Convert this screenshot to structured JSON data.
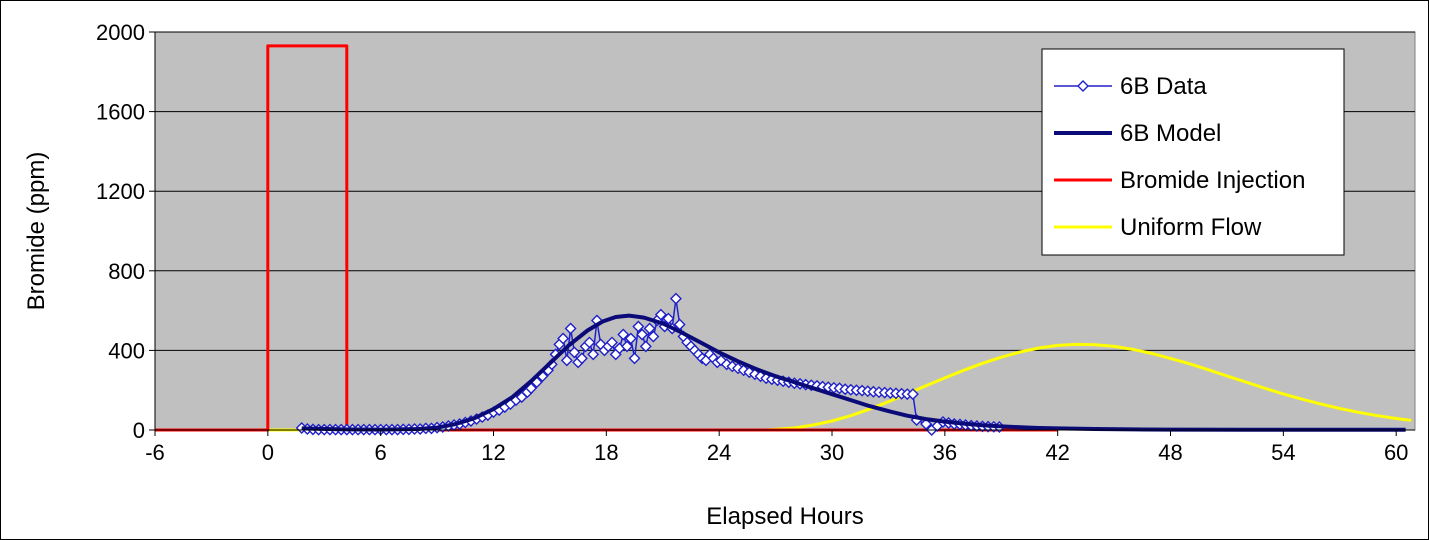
{
  "chart_data": {
    "type": "line",
    "title": "",
    "xlabel": "Elapsed Hours",
    "ylabel": "Bromide (ppm)",
    "xlim": [
      -6,
      61
    ],
    "ylim": [
      0,
      2000
    ],
    "xticks": [
      -6,
      0,
      6,
      12,
      18,
      24,
      30,
      36,
      42,
      48,
      54,
      60
    ],
    "yticks": [
      0,
      400,
      800,
      1200,
      1600,
      2000
    ],
    "grid": "horizontal",
    "legend_position": "top-right",
    "colors": {
      "plot_background": "#c0c0c0",
      "data": "#2020c8",
      "model": "#0a0a78",
      "injection": "#ff0000",
      "uniform": "#ffff00"
    },
    "series": [
      {
        "name": "6B Data",
        "marker": "diamond",
        "points": [
          [
            1.8,
            10
          ],
          [
            2.1,
            5
          ],
          [
            2.4,
            3
          ],
          [
            2.7,
            2
          ],
          [
            3.0,
            2
          ],
          [
            3.3,
            2
          ],
          [
            3.6,
            2
          ],
          [
            3.9,
            2
          ],
          [
            4.2,
            2
          ],
          [
            4.5,
            2
          ],
          [
            4.8,
            2
          ],
          [
            5.1,
            2
          ],
          [
            5.4,
            2
          ],
          [
            5.7,
            2
          ],
          [
            6.0,
            2
          ],
          [
            6.3,
            2
          ],
          [
            6.6,
            2
          ],
          [
            6.9,
            2
          ],
          [
            7.2,
            3
          ],
          [
            7.5,
            3
          ],
          [
            7.8,
            5
          ],
          [
            8.1,
            5
          ],
          [
            8.4,
            8
          ],
          [
            8.7,
            8
          ],
          [
            9.0,
            12
          ],
          [
            9.3,
            15
          ],
          [
            9.6,
            20
          ],
          [
            9.9,
            25
          ],
          [
            10.2,
            30
          ],
          [
            10.5,
            38
          ],
          [
            10.8,
            45
          ],
          [
            11.1,
            55
          ],
          [
            11.4,
            65
          ],
          [
            11.7,
            75
          ],
          [
            12.0,
            90
          ],
          [
            12.3,
            100
          ],
          [
            12.6,
            115
          ],
          [
            12.9,
            130
          ],
          [
            13.2,
            150
          ],
          [
            13.5,
            165
          ],
          [
            13.8,
            190
          ],
          [
            14.0,
            210
          ],
          [
            14.3,
            240
          ],
          [
            14.6,
            270
          ],
          [
            14.9,
            300
          ],
          [
            15.1,
            330
          ],
          [
            15.3,
            380
          ],
          [
            15.5,
            430
          ],
          [
            15.7,
            460
          ],
          [
            15.9,
            350
          ],
          [
            16.1,
            510
          ],
          [
            16.3,
            390
          ],
          [
            16.5,
            340
          ],
          [
            16.7,
            360
          ],
          [
            16.9,
            420
          ],
          [
            17.1,
            440
          ],
          [
            17.3,
            380
          ],
          [
            17.5,
            550
          ],
          [
            17.7,
            430
          ],
          [
            17.9,
            400
          ],
          [
            18.1,
            420
          ],
          [
            18.3,
            440
          ],
          [
            18.5,
            380
          ],
          [
            18.7,
            410
          ],
          [
            18.9,
            480
          ],
          [
            19.1,
            420
          ],
          [
            19.3,
            460
          ],
          [
            19.5,
            360
          ],
          [
            19.7,
            520
          ],
          [
            19.9,
            480
          ],
          [
            20.1,
            420
          ],
          [
            20.3,
            510
          ],
          [
            20.5,
            470
          ],
          [
            20.7,
            550
          ],
          [
            20.9,
            580
          ],
          [
            21.1,
            520
          ],
          [
            21.3,
            560
          ],
          [
            21.5,
            510
          ],
          [
            21.7,
            660
          ],
          [
            21.9,
            530
          ],
          [
            22.1,
            470
          ],
          [
            22.3,
            440
          ],
          [
            22.5,
            420
          ],
          [
            22.7,
            400
          ],
          [
            22.9,
            380
          ],
          [
            23.1,
            360
          ],
          [
            23.3,
            350
          ],
          [
            23.5,
            380
          ],
          [
            23.7,
            360
          ],
          [
            23.9,
            340
          ],
          [
            24.1,
            350
          ],
          [
            24.4,
            330
          ],
          [
            24.7,
            320
          ],
          [
            25.0,
            310
          ],
          [
            25.3,
            300
          ],
          [
            25.6,
            290
          ],
          [
            25.9,
            280
          ],
          [
            26.2,
            270
          ],
          [
            26.5,
            260
          ],
          [
            26.8,
            255
          ],
          [
            27.1,
            250
          ],
          [
            27.4,
            245
          ],
          [
            27.7,
            240
          ],
          [
            28.0,
            235
          ],
          [
            28.3,
            232
          ],
          [
            28.6,
            228
          ],
          [
            28.9,
            225
          ],
          [
            29.2,
            222
          ],
          [
            29.5,
            218
          ],
          [
            29.8,
            215
          ],
          [
            30.1,
            212
          ],
          [
            30.4,
            210
          ],
          [
            30.7,
            205
          ],
          [
            31.0,
            202
          ],
          [
            31.3,
            200
          ],
          [
            31.6,
            198
          ],
          [
            31.9,
            195
          ],
          [
            32.2,
            192
          ],
          [
            32.5,
            190
          ],
          [
            32.8,
            188
          ],
          [
            33.1,
            186
          ],
          [
            33.4,
            184
          ],
          [
            33.7,
            182
          ],
          [
            34.0,
            180
          ],
          [
            34.3,
            180
          ],
          [
            34.5,
            50
          ],
          [
            35.0,
            30
          ],
          [
            35.3,
            0
          ],
          [
            35.6,
            20
          ],
          [
            35.9,
            40
          ],
          [
            36.2,
            35
          ],
          [
            36.5,
            30
          ],
          [
            36.8,
            28
          ],
          [
            37.1,
            25
          ],
          [
            37.4,
            22
          ],
          [
            37.7,
            20
          ],
          [
            38.0,
            18
          ],
          [
            38.3,
            17
          ],
          [
            38.6,
            16
          ],
          [
            38.9,
            15
          ]
        ]
      },
      {
        "name": "6B Model",
        "points": [
          [
            1.8,
            8
          ],
          [
            4,
            3
          ],
          [
            6,
            2
          ],
          [
            8,
            5
          ],
          [
            9,
            12
          ],
          [
            10,
            30
          ],
          [
            11,
            60
          ],
          [
            12,
            105
          ],
          [
            13,
            165
          ],
          [
            14,
            245
          ],
          [
            15,
            335
          ],
          [
            16,
            425
          ],
          [
            17,
            500
          ],
          [
            17.8,
            545
          ],
          [
            18.5,
            568
          ],
          [
            19.2,
            575
          ],
          [
            20,
            565
          ],
          [
            21,
            535
          ],
          [
            22,
            490
          ],
          [
            23,
            440
          ],
          [
            24,
            390
          ],
          [
            25,
            345
          ],
          [
            26,
            305
          ],
          [
            27,
            270
          ],
          [
            28,
            240
          ],
          [
            29,
            210
          ],
          [
            30,
            180
          ],
          [
            31,
            150
          ],
          [
            32,
            120
          ],
          [
            33,
            95
          ],
          [
            34,
            72
          ],
          [
            35,
            55
          ],
          [
            36,
            42
          ],
          [
            37,
            32
          ],
          [
            38,
            24
          ],
          [
            39,
            18
          ],
          [
            40,
            14
          ],
          [
            41,
            10
          ],
          [
            42,
            8
          ],
          [
            44,
            5
          ],
          [
            46,
            3
          ],
          [
            48,
            2
          ],
          [
            52,
            1
          ],
          [
            56,
            1
          ],
          [
            60.5,
            1
          ]
        ]
      },
      {
        "name": "Bromide Injection",
        "points": [
          [
            -6,
            0
          ],
          [
            0,
            0
          ],
          [
            0,
            1930
          ],
          [
            4.2,
            1930
          ],
          [
            4.2,
            0
          ],
          [
            42,
            0
          ]
        ]
      },
      {
        "name": "Uniform Flow",
        "points": [
          [
            0,
            0
          ],
          [
            26.5,
            0
          ],
          [
            28,
            10
          ],
          [
            29,
            25
          ],
          [
            30,
            45
          ],
          [
            31,
            72
          ],
          [
            32,
            105
          ],
          [
            33,
            142
          ],
          [
            34,
            182
          ],
          [
            35,
            222
          ],
          [
            36,
            262
          ],
          [
            37,
            300
          ],
          [
            38,
            335
          ],
          [
            39,
            366
          ],
          [
            40,
            392
          ],
          [
            41,
            412
          ],
          [
            42,
            425
          ],
          [
            43,
            430
          ],
          [
            44,
            428
          ],
          [
            45,
            420
          ],
          [
            46,
            405
          ],
          [
            47,
            385
          ],
          [
            48,
            360
          ],
          [
            49,
            333
          ],
          [
            50,
            303
          ],
          [
            51,
            272
          ],
          [
            52,
            241
          ],
          [
            53,
            210
          ],
          [
            54,
            181
          ],
          [
            55,
            155
          ],
          [
            56,
            130
          ],
          [
            57,
            108
          ],
          [
            58,
            89
          ],
          [
            59,
            72
          ],
          [
            60,
            58
          ],
          [
            60.8,
            48
          ]
        ]
      }
    ]
  }
}
